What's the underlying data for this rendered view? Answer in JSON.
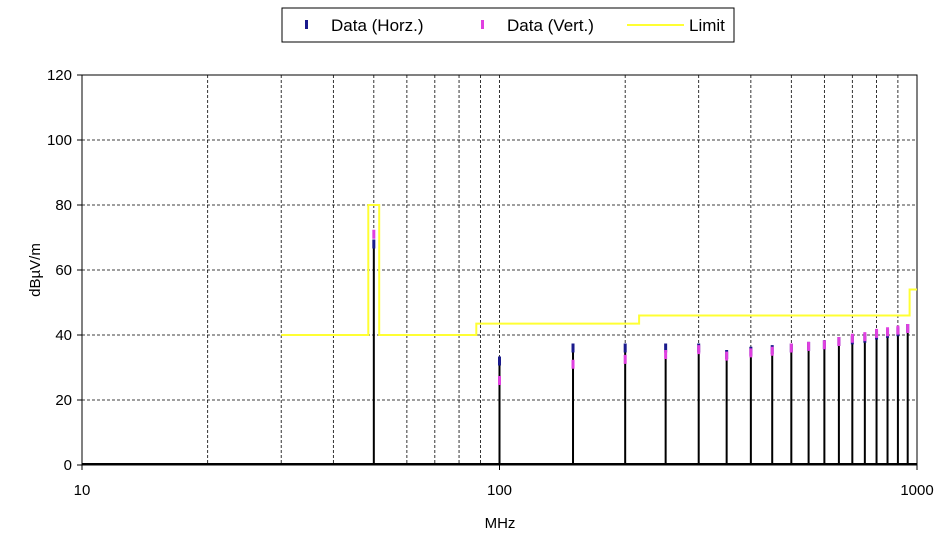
{
  "chart_data": {
    "type": "line",
    "xscale": "log",
    "xlim": [
      10,
      1000
    ],
    "ylim": [
      0,
      120
    ],
    "xlabel": "MHz",
    "ylabel": "dBµV/m",
    "grid": true,
    "legend_position": "top-center",
    "xticks": [
      10,
      100,
      1000
    ],
    "xtick_labels": [
      "10",
      "100",
      "1000"
    ],
    "yticks": [
      0,
      20,
      40,
      60,
      80,
      100,
      120
    ],
    "ytick_labels": [
      "0",
      "20",
      "40",
      "60",
      "80",
      "100",
      "120"
    ],
    "series": [
      {
        "name": "Data (Horz.)",
        "color": "#1a1a8c",
        "marker": "vertical-dash",
        "points": [
          [
            50,
            68
          ],
          [
            100,
            32
          ],
          [
            150,
            36
          ],
          [
            200,
            36
          ],
          [
            250,
            36
          ],
          [
            300,
            36
          ],
          [
            350,
            34
          ],
          [
            400,
            35
          ],
          [
            450,
            35.5
          ],
          [
            500,
            36
          ],
          [
            550,
            36.5
          ],
          [
            600,
            37
          ],
          [
            650,
            38
          ],
          [
            700,
            38.5
          ],
          [
            750,
            39
          ],
          [
            800,
            40
          ],
          [
            850,
            40.5
          ],
          [
            900,
            41
          ],
          [
            950,
            42
          ]
        ]
      },
      {
        "name": "Data (Vert.)",
        "color": "#e040e0",
        "marker": "vertical-dash",
        "points": [
          [
            50,
            71
          ],
          [
            100,
            26
          ],
          [
            150,
            31
          ],
          [
            200,
            32.5
          ],
          [
            250,
            34
          ],
          [
            300,
            35.5
          ],
          [
            350,
            33.5
          ],
          [
            400,
            34.5
          ],
          [
            450,
            35
          ],
          [
            500,
            36
          ],
          [
            550,
            36.5
          ],
          [
            600,
            37
          ],
          [
            650,
            38
          ],
          [
            700,
            39
          ],
          [
            750,
            39.5
          ],
          [
            800,
            40.5
          ],
          [
            850,
            41
          ],
          [
            900,
            41.5
          ],
          [
            950,
            42
          ]
        ]
      },
      {
        "name": "Limit",
        "color": "#ffff33",
        "step_points": [
          [
            30,
            40
          ],
          [
            48.5,
            40
          ],
          [
            48.5,
            80
          ],
          [
            51.5,
            80
          ],
          [
            51.5,
            40
          ],
          [
            88,
            40
          ],
          [
            88,
            43.5
          ],
          [
            216,
            43.5
          ],
          [
            216,
            46
          ],
          [
            960,
            46
          ],
          [
            960,
            54
          ],
          [
            1000,
            54
          ]
        ]
      }
    ],
    "spectrum_lines": {
      "color": "#000000",
      "x": [
        50,
        100,
        150,
        200,
        250,
        300,
        350,
        400,
        450,
        500,
        550,
        600,
        650,
        700,
        750,
        800,
        850,
        900,
        950
      ],
      "y": [
        68,
        32,
        36,
        36,
        36,
        36,
        34,
        35,
        35.5,
        36,
        36.5,
        37,
        38,
        38.5,
        39,
        40,
        40.5,
        41,
        42
      ]
    }
  }
}
